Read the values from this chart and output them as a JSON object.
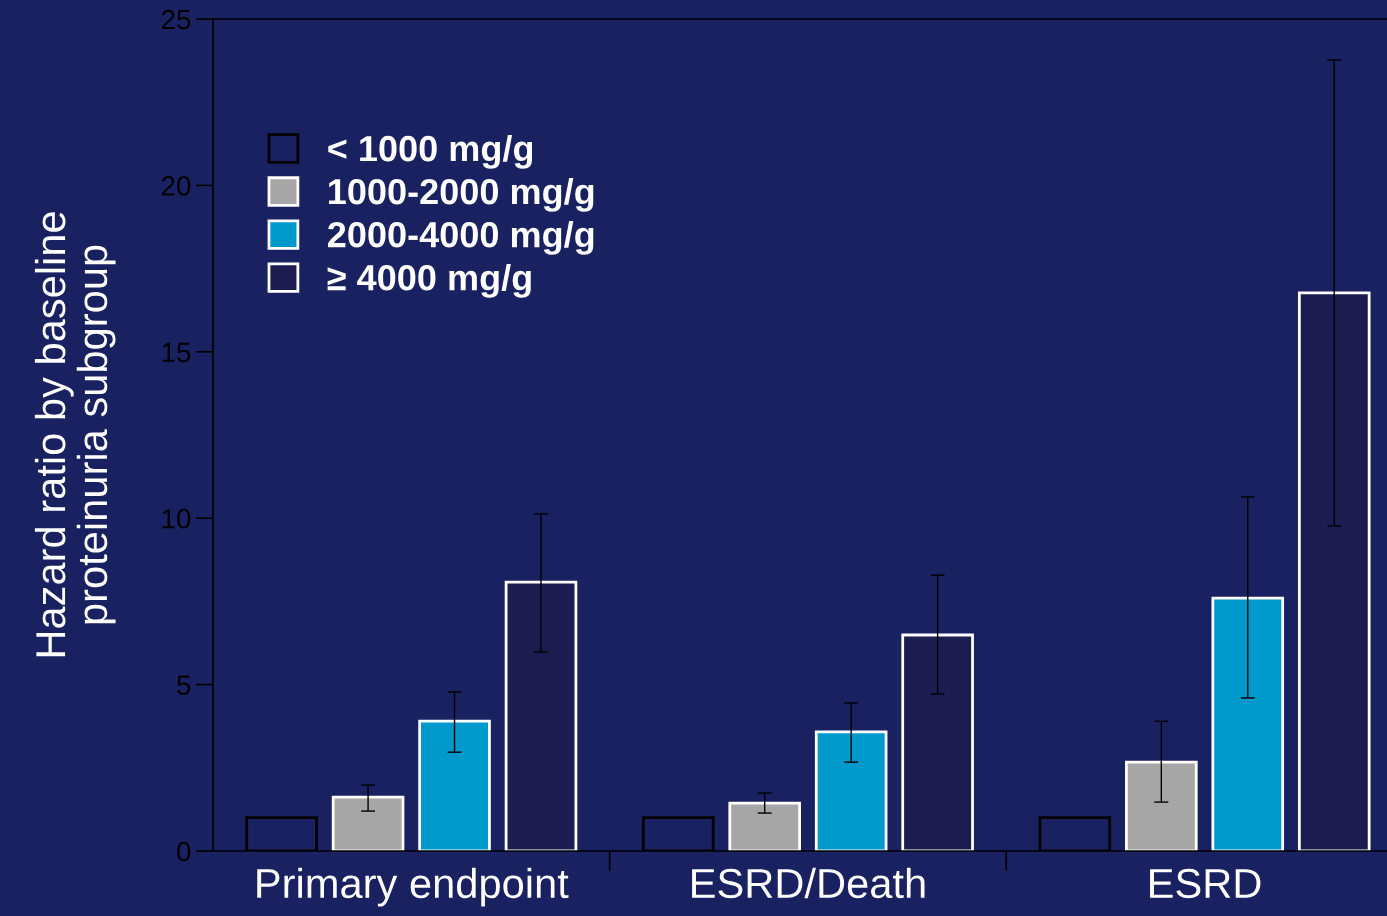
{
  "chart_data": {
    "type": "bar",
    "ylabel": "Hazard ratio by baseline\nproteinuria subgroup",
    "categories": [
      "Primary endpoint",
      "ESRD/Death",
      "ESRD"
    ],
    "series": [
      {
        "name": "< 1000 mg/g",
        "color": "#1a2161",
        "values": [
          1.0,
          1.0,
          1.0
        ]
      },
      {
        "name": "1000-2000 mg/g",
        "color": "#a6a6a6",
        "values": [
          1.62,
          1.44,
          2.67
        ],
        "errors": [
          [
            1.2,
            1.98
          ],
          [
            1.14,
            1.74
          ],
          [
            1.47,
            3.9
          ]
        ]
      },
      {
        "name": "2000-4000 mg/g",
        "color": "#0099cc",
        "values": [
          3.9,
          3.58,
          7.6
        ],
        "errors": [
          [
            2.97,
            4.78
          ],
          [
            2.67,
            4.45
          ],
          [
            4.6,
            10.64
          ]
        ]
      },
      {
        "name": "≥ 4000 mg/g",
        "color": "#1c1c50",
        "values": [
          8.08,
          6.49,
          16.77
        ],
        "errors": [
          [
            5.98,
            10.13
          ],
          [
            4.72,
            8.29
          ],
          [
            9.77,
            23.77
          ]
        ]
      }
    ],
    "ylim": [
      0,
      25
    ],
    "yticks": [
      0,
      5,
      10,
      15,
      20,
      25
    ],
    "legend": "top left",
    "grid": false
  }
}
